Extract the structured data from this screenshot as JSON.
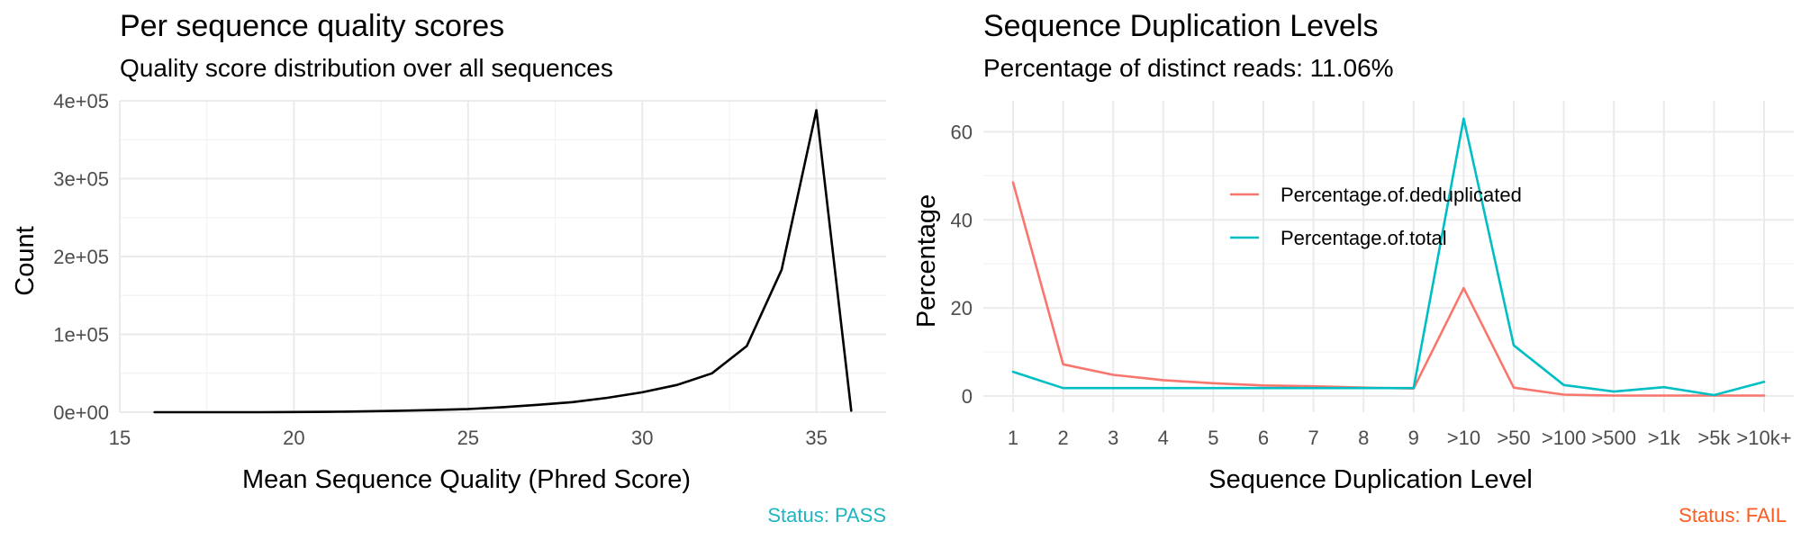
{
  "chart_data": [
    {
      "type": "line",
      "title": "Per sequence quality scores",
      "subtitle": "Quality score distribution over all sequences",
      "xlabel": "Mean Sequence Quality (Phred Score)",
      "ylabel": "Count",
      "xlim": [
        15,
        37
      ],
      "ylim": [
        0,
        400000
      ],
      "x_ticks": [
        15,
        20,
        25,
        30,
        35
      ],
      "x_tick_labels": [
        "15",
        "20",
        "25",
        "30",
        "35"
      ],
      "y_ticks": [
        0,
        100000,
        200000,
        300000,
        400000
      ],
      "y_tick_labels": [
        "0e+00",
        "1e+05",
        "2e+05",
        "3e+05",
        "4e+05"
      ],
      "grid": true,
      "line_color": "#000000",
      "status": "Status: PASS",
      "status_color": "#1fb5bf",
      "series": [
        {
          "x": [
            16,
            17,
            18,
            19,
            20,
            21,
            22,
            23,
            24,
            25,
            26,
            27,
            28,
            29,
            30,
            31,
            32,
            33,
            34,
            35,
            36
          ],
          "values": [
            0,
            0,
            0,
            0,
            200,
            500,
            1000,
            1800,
            2800,
            4000,
            6500,
            9500,
            13000,
            18500,
            25500,
            35000,
            50000,
            85000,
            183000,
            388000,
            2000
          ]
        }
      ]
    },
    {
      "type": "line",
      "title": "Sequence Duplication Levels",
      "subtitle": "Percentage of distinct reads: 11.06%",
      "xlabel": "Sequence Duplication Level",
      "ylabel": "Percentage",
      "ylim": [
        0,
        65
      ],
      "y_ticks": [
        0,
        20,
        40,
        60
      ],
      "y_tick_labels": [
        "0",
        "20",
        "40",
        "60"
      ],
      "categories": [
        "1",
        "2",
        "3",
        "4",
        "5",
        "6",
        "7",
        "8",
        "9",
        ">10",
        ">50",
        ">100",
        ">500",
        ">1k",
        ">5k",
        ">10k+"
      ],
      "grid": true,
      "legend_position": "inside-top-center",
      "status": "Status: FAIL",
      "status_color": "#ff5a1f",
      "series": [
        {
          "name": "Percentage.of.deduplicated",
          "color": "#f8766d",
          "values": [
            48.5,
            7.2,
            4.8,
            3.6,
            2.9,
            2.4,
            2.2,
            1.9,
            1.7,
            24.5,
            1.9,
            0.3,
            0.1,
            0.1,
            0.1,
            0.1
          ]
        },
        {
          "name": "Percentage.of.total",
          "color": "#00bfc4",
          "values": [
            5.5,
            1.8,
            1.8,
            1.8,
            1.8,
            1.8,
            1.8,
            1.8,
            1.8,
            63.0,
            11.5,
            2.5,
            1.0,
            2.0,
            0.2,
            3.2
          ]
        }
      ]
    }
  ]
}
